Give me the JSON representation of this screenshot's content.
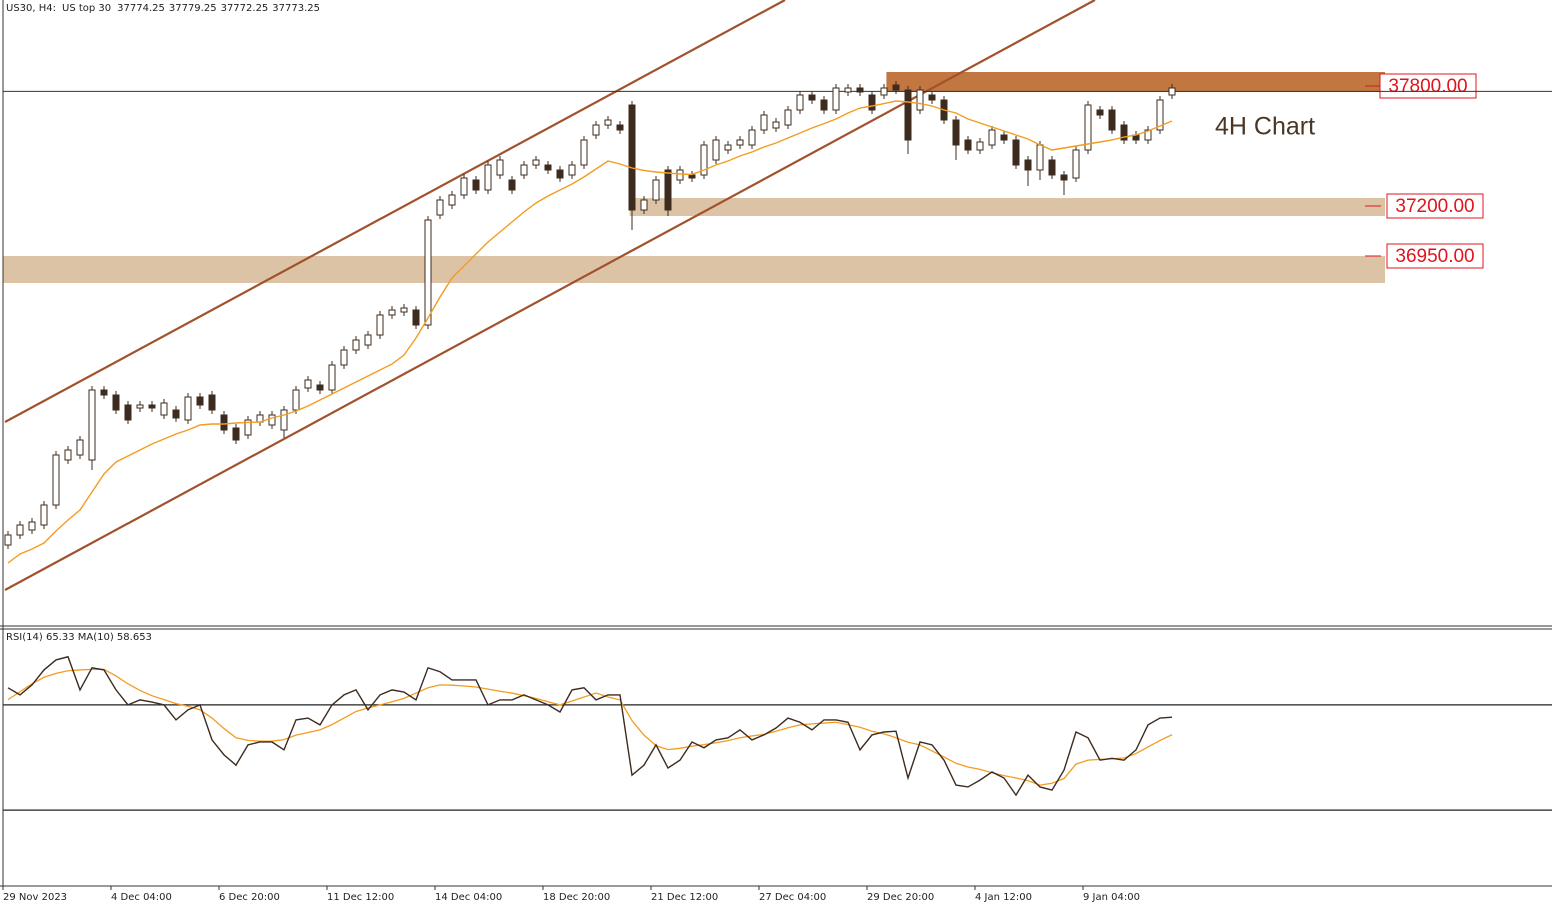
{
  "chart_data": [
    {
      "type": "candlestick",
      "header": {
        "symbol": "US30, H4:",
        "name": "US top 30",
        "ohlc": [
          37774.25,
          37779.25,
          37772.25,
          37773.25
        ]
      },
      "annotation": "4H Chart",
      "ylim": [
        35100,
        38230
      ],
      "up_color": "#ffffff",
      "down_color": "#3d2b1f",
      "outline_color": "#3d2b1f",
      "categories": [
        "29 Nov 2023",
        null,
        null,
        null,
        null,
        null,
        null,
        null,
        null,
        "4 Dec 04:00",
        null,
        null,
        null,
        null,
        null,
        null,
        null,
        null,
        "6 Dec 20:00",
        null,
        null,
        null,
        null,
        null,
        null,
        null,
        null,
        "11 Dec 12:00",
        null,
        null,
        null,
        null,
        null,
        null,
        null,
        null,
        "14 Dec 04:00",
        null,
        null,
        null,
        null,
        null,
        null,
        null,
        null,
        "18 Dec 20:00",
        null,
        null,
        null,
        null,
        null,
        null,
        null,
        null,
        "21 Dec 12:00",
        null,
        null,
        null,
        null,
        null,
        null,
        null,
        null,
        "27 Dec 04:00",
        null,
        null,
        null,
        null,
        null,
        null,
        null,
        null,
        "29 Dec 20:00",
        null,
        null,
        null,
        null,
        null,
        null,
        null,
        null,
        "4 Jan 12:00",
        null,
        null,
        null,
        null,
        null,
        null,
        null,
        null,
        "9 Jan 04:00",
        null,
        null,
        null,
        null,
        null,
        null,
        null
      ],
      "ohlc": [
        [
          35505,
          35575,
          35485,
          35555
        ],
        [
          35555,
          35625,
          35535,
          35605
        ],
        [
          35580,
          35640,
          35560,
          35620
        ],
        [
          35605,
          35725,
          35585,
          35705
        ],
        [
          35705,
          35975,
          35685,
          35955
        ],
        [
          35930,
          36000,
          35910,
          35980
        ],
        [
          35955,
          36050,
          35935,
          36030
        ],
        [
          35930,
          36300,
          35880,
          36280
        ],
        [
          36280,
          36300,
          36235,
          36255
        ],
        [
          36255,
          36275,
          36160,
          36180
        ],
        [
          36205,
          36225,
          36110,
          36130
        ],
        [
          36190,
          36225,
          36170,
          36205
        ],
        [
          36205,
          36225,
          36170,
          36190
        ],
        [
          36155,
          36235,
          36135,
          36215
        ],
        [
          36180,
          36200,
          36120,
          36140
        ],
        [
          36130,
          36265,
          36110,
          36245
        ],
        [
          36245,
          36265,
          36185,
          36205
        ],
        [
          36255,
          36275,
          36160,
          36180
        ],
        [
          36155,
          36175,
          36060,
          36080
        ],
        [
          36090,
          36110,
          36010,
          36030
        ],
        [
          36055,
          36150,
          36035,
          36130
        ],
        [
          36120,
          36175,
          36100,
          36155
        ],
        [
          36105,
          36175,
          36085,
          36155
        ],
        [
          36080,
          36200,
          36040,
          36180
        ],
        [
          36180,
          36300,
          36160,
          36280
        ],
        [
          36290,
          36350,
          36270,
          36330
        ],
        [
          36305,
          36325,
          36260,
          36280
        ],
        [
          36280,
          36425,
          36260,
          36405
        ],
        [
          36405,
          36500,
          36385,
          36480
        ],
        [
          36480,
          36550,
          36460,
          36530
        ],
        [
          36505,
          36575,
          36485,
          36555
        ],
        [
          36555,
          36675,
          36535,
          36655
        ],
        [
          36655,
          36700,
          36635,
          36680
        ],
        [
          36670,
          36710,
          36650,
          36690
        ],
        [
          36680,
          36700,
          36585,
          36605
        ],
        [
          36605,
          37150,
          36585,
          37130
        ],
        [
          37155,
          37250,
          37135,
          37230
        ],
        [
          37205,
          37275,
          37185,
          37255
        ],
        [
          37255,
          37360,
          37235,
          37340
        ],
        [
          37330,
          37350,
          37260,
          37280
        ],
        [
          37280,
          37425,
          37260,
          37405
        ],
        [
          37355,
          37450,
          37335,
          37430
        ],
        [
          37330,
          37350,
          37260,
          37280
        ],
        [
          37355,
          37425,
          37335,
          37405
        ],
        [
          37405,
          37450,
          37385,
          37430
        ],
        [
          37405,
          37425,
          37360,
          37380
        ],
        [
          37380,
          37400,
          37320,
          37340
        ],
        [
          37355,
          37425,
          37335,
          37405
        ],
        [
          37405,
          37550,
          37385,
          37530
        ],
        [
          37555,
          37625,
          37535,
          37605
        ],
        [
          37605,
          37650,
          37585,
          37630
        ],
        [
          37605,
          37625,
          37560,
          37580
        ],
        [
          37705,
          37725,
          37080,
          37180
        ],
        [
          37180,
          37250,
          37160,
          37230
        ],
        [
          37230,
          37350,
          37210,
          37330
        ],
        [
          37380,
          37400,
          37150,
          37180
        ],
        [
          37330,
          37400,
          37310,
          37380
        ],
        [
          37355,
          37375,
          37320,
          37340
        ],
        [
          37355,
          37525,
          37335,
          37505
        ],
        [
          37430,
          37550,
          37410,
          37530
        ],
        [
          37480,
          37525,
          37460,
          37505
        ],
        [
          37505,
          37550,
          37485,
          37530
        ],
        [
          37505,
          37600,
          37485,
          37580
        ],
        [
          37580,
          37675,
          37560,
          37655
        ],
        [
          37590,
          37640,
          37570,
          37620
        ],
        [
          37605,
          37700,
          37585,
          37680
        ],
        [
          37680,
          37775,
          37660,
          37755
        ],
        [
          37755,
          37775,
          37710,
          37730
        ],
        [
          37730,
          37750,
          37660,
          37680
        ],
        [
          37680,
          37810,
          37660,
          37790
        ],
        [
          37770,
          37810,
          37750,
          37790
        ],
        [
          37790,
          37810,
          37750,
          37770
        ],
        [
          37755,
          37775,
          37660,
          37680
        ],
        [
          37755,
          37810,
          37735,
          37790
        ],
        [
          37805,
          37825,
          37760,
          37780
        ],
        [
          37780,
          37800,
          37460,
          37530
        ],
        [
          37680,
          37800,
          37660,
          37780
        ],
        [
          37755,
          37775,
          37710,
          37730
        ],
        [
          37730,
          37750,
          37610,
          37630
        ],
        [
          37630,
          37650,
          37430,
          37505
        ],
        [
          37530,
          37550,
          37460,
          37480
        ],
        [
          37480,
          37540,
          37460,
          37520
        ],
        [
          37505,
          37600,
          37485,
          37580
        ],
        [
          37555,
          37575,
          37510,
          37530
        ],
        [
          37530,
          37550,
          37385,
          37405
        ],
        [
          37430,
          37450,
          37300,
          37380
        ],
        [
          37380,
          37525,
          37330,
          37505
        ],
        [
          37430,
          37450,
          37335,
          37355
        ],
        [
          37355,
          37375,
          37255,
          37330
        ],
        [
          37340,
          37500,
          37320,
          37480
        ],
        [
          37480,
          37725,
          37460,
          37705
        ],
        [
          37680,
          37700,
          37635,
          37655
        ],
        [
          37680,
          37700,
          37560,
          37580
        ],
        [
          37605,
          37625,
          37510,
          37530
        ],
        [
          37555,
          37575,
          37510,
          37530
        ],
        [
          37530,
          37600,
          37510,
          37580
        ],
        [
          37580,
          37750,
          37560,
          37730
        ],
        [
          37755,
          37810,
          37735,
          37790
        ]
      ],
      "ma": {
        "color": "#f39c1f",
        "values": [
          35415,
          35460,
          35485,
          35515,
          35575,
          35630,
          35680,
          35770,
          35860,
          35920,
          35950,
          35980,
          36010,
          36035,
          36060,
          36080,
          36105,
          36110,
          36110,
          36115,
          36118,
          36120,
          36140,
          36155,
          36175,
          36200,
          36230,
          36260,
          36290,
          36320,
          36350,
          36380,
          36410,
          36455,
          36540,
          36640,
          36745,
          36840,
          36900,
          36960,
          37020,
          37070,
          37120,
          37170,
          37215,
          37250,
          37280,
          37310,
          37345,
          37385,
          37425,
          37410,
          37390,
          37378,
          37370,
          37365,
          37360,
          37358,
          37380,
          37405,
          37425,
          37450,
          37470,
          37495,
          37515,
          37540,
          37565,
          37590,
          37612,
          37635,
          37665,
          37690,
          37700,
          37712,
          37725,
          37720,
          37712,
          37700,
          37680,
          37665,
          37635,
          37615,
          37595,
          37575,
          37555,
          37535,
          37505,
          37480,
          37490,
          37500,
          37510,
          37520,
          37530,
          37545,
          37555,
          37575,
          37600,
          37625
        ]
      },
      "channel": {
        "color": "#a0522d",
        "lines": [
          [
            [
              -0.25,
              36120
            ],
            [
              64.75,
              38230
            ]
          ],
          [
            [
              -0.25,
              35280
            ],
            [
              90.58,
              38230
            ]
          ]
        ]
      },
      "zones": [
        {
          "top": 37870,
          "bottom": 37770,
          "start": 73.2,
          "color": "#c1773f",
          "label": {
            "value": 37800,
            "label": "37800.00"
          }
        },
        {
          "top": 37240,
          "bottom": 37150,
          "start": 51.8,
          "color": "#dcc3a6",
          "label": {
            "value": 37200,
            "label": "37200.00"
          }
        },
        {
          "top": 36950,
          "bottom": 36815,
          "start": -0.4,
          "color": "#dcc3a6",
          "label": {
            "value": 36950,
            "label": "36950.00"
          }
        }
      ],
      "label_color": "#e0141e"
    },
    {
      "type": "line",
      "title": "RSI(14) 65.33 MA(10) 58.653",
      "ylim": [
        0,
        100
      ],
      "hlines": [
        70,
        30
      ],
      "color": "#3d2b1f",
      "values": [
        76.5,
        73.8,
        77.6,
        83.3,
        87.1,
        88.3,
        75.7,
        84.1,
        83.3,
        75.7,
        70,
        71.9,
        71.1,
        70,
        64.3,
        68.1,
        70,
        56.7,
        51,
        47.1,
        54.8,
        55.9,
        55.9,
        52.9,
        64.3,
        65,
        62.4,
        70,
        73.8,
        75.7,
        68.1,
        73.8,
        75.7,
        74.9,
        71.9,
        84.1,
        82.6,
        79.5,
        79.5,
        79.5,
        70,
        71.9,
        71.9,
        73.8,
        71.9,
        70,
        67.3,
        75.7,
        76.5,
        71.9,
        73.8,
        73.8,
        43.3,
        47.1,
        54.8,
        46,
        49,
        55.9,
        53.7,
        56.7,
        57.5,
        60.5,
        56.7,
        58.6,
        61.2,
        65,
        63.4,
        60.5,
        64.3,
        64.3,
        63.4,
        52.9,
        58.6,
        59.7,
        60,
        42.2,
        55.9,
        54.8,
        49,
        39.5,
        38.8,
        41.4,
        44.5,
        42.2,
        35.7,
        43.3,
        38.8,
        37.6,
        45.2,
        59.7,
        57.5,
        49,
        49.7,
        49,
        52.9,
        62.4,
        65,
        65.33
      ],
      "ma": {
        "color": "#f39c1f",
        "values": [
          72,
          75,
          78,
          80.5,
          82,
          83,
          83.3,
          83.5,
          83.5,
          81,
          78,
          75.5,
          73.5,
          72,
          70.5,
          69.5,
          68.1,
          65,
          61,
          57.5,
          56.5,
          56.2,
          56.2,
          56.8,
          58.5,
          59.5,
          60.5,
          62.5,
          65,
          67.5,
          68.8,
          70,
          71.2,
          72.5,
          74.5,
          76.5,
          77.6,
          77.5,
          77.2,
          76.8,
          76,
          75.2,
          74.5,
          73.5,
          72.5,
          71.2,
          70,
          71.5,
          73,
          74.5,
          73,
          71.9,
          64,
          58.5,
          54.5,
          53,
          53.5,
          54.3,
          54.9,
          55.6,
          56.4,
          57.5,
          58.2,
          58.8,
          60,
          61.3,
          62.4,
          62.8,
          63.1,
          63.4,
          62.5,
          61.5,
          60,
          59,
          57.5,
          55.8,
          54.8,
          52.5,
          50.2,
          47.8,
          46.4,
          45.5,
          44.2,
          43.1,
          42.2,
          41.2,
          39.5,
          40.2,
          42,
          47.5,
          49,
          49.3,
          49.5,
          49.8,
          51.5,
          54,
          56.5,
          58.65
        ]
      }
    }
  ]
}
